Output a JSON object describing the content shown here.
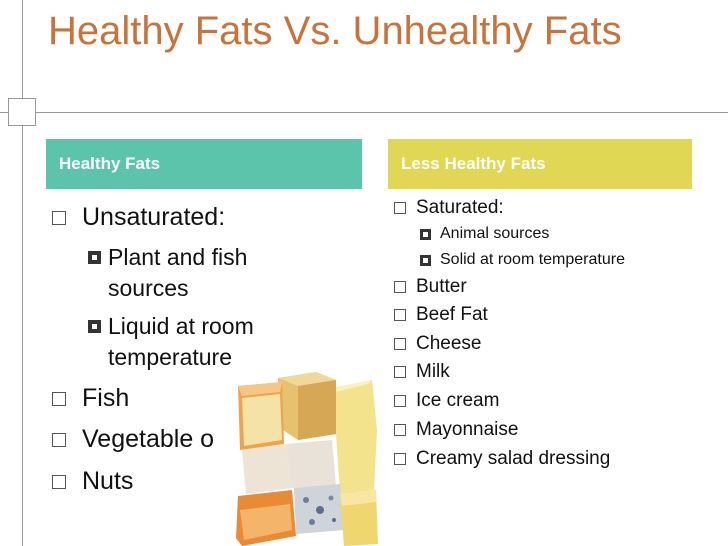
{
  "slide": {
    "title": "Healthy Fats Vs. Unhealthy Fats"
  },
  "left": {
    "header": "Healthy Fats",
    "items": [
      {
        "text": "Unsaturated:",
        "sub": [
          "Plant and fish sources",
          "Liquid at room temperature"
        ]
      },
      {
        "text": "Fish"
      },
      {
        "text": "Vegetable o"
      },
      {
        "text": "Nuts"
      }
    ]
  },
  "right": {
    "header": "Less Healthy Fats",
    "items": [
      {
        "text": "Saturated:",
        "sub": [
          "Animal sources",
          "Solid at room temperature"
        ]
      },
      {
        "text": "Butter"
      },
      {
        "text": "Beef Fat"
      },
      {
        "text": "Cheese"
      },
      {
        "text": "Milk"
      },
      {
        "text": "Ice cream"
      },
      {
        "text": "Mayonnaise"
      },
      {
        "text": "Creamy salad dressing"
      }
    ]
  },
  "colors": {
    "title": "#c8733a",
    "left_header_bg": "#5cc4ab",
    "right_header_bg": "#e0d754"
  },
  "image": {
    "icon": "cheese-photo"
  }
}
